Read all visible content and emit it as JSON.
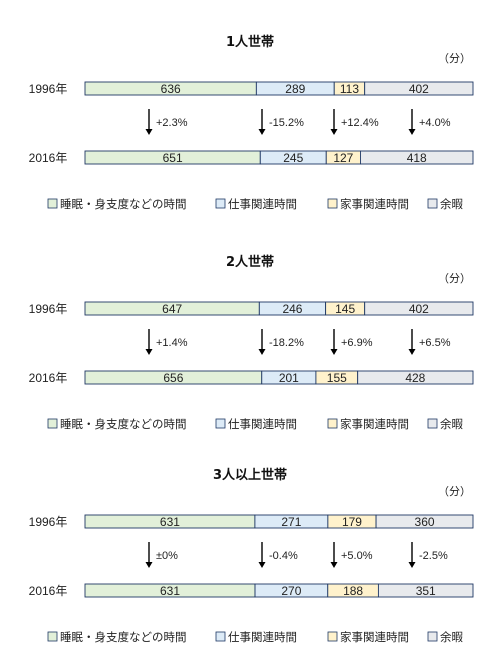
{
  "colors": {
    "sleep": "#E2F0D9",
    "work": "#DDEBF7",
    "house": "#FFF2CC",
    "leisure": "#E8EAED",
    "border": "#1F3864"
  },
  "chart_data": [
    {
      "type": "bar",
      "stacked": true,
      "orientation": "horizontal",
      "title": "1人世帯",
      "unit": "（分）",
      "categories": [
        "1996年",
        "2016年"
      ],
      "series": [
        {
          "name": "睡眠・身支度などの時間",
          "values": [
            636,
            651
          ]
        },
        {
          "name": "仕事関連時間",
          "values": [
            289,
            245
          ]
        },
        {
          "name": "家事関連時間",
          "values": [
            113,
            127
          ]
        },
        {
          "name": "余暇",
          "values": [
            402,
            418
          ]
        }
      ],
      "changes": [
        "+2.3%",
        "-15.2%",
        "+12.4%",
        "+4.0%"
      ],
      "legend": [
        "睡眠・身支度などの時間",
        "仕事関連時間",
        "家事関連時間",
        "余暇"
      ]
    },
    {
      "type": "bar",
      "stacked": true,
      "orientation": "horizontal",
      "title": "2人世帯",
      "unit": "（分）",
      "categories": [
        "1996年",
        "2016年"
      ],
      "series": [
        {
          "name": "睡眠・身支度などの時間",
          "values": [
            647,
            656
          ]
        },
        {
          "name": "仕事関連時間",
          "values": [
            246,
            201
          ]
        },
        {
          "name": "家事関連時間",
          "values": [
            145,
            155
          ]
        },
        {
          "name": "余暇",
          "values": [
            402,
            428
          ]
        }
      ],
      "changes": [
        "+1.4%",
        "-18.2%",
        "+6.9%",
        "+6.5%"
      ],
      "legend": [
        "睡眠・身支度などの時間",
        "仕事関連時間",
        "家事関連時間",
        "余暇"
      ]
    },
    {
      "type": "bar",
      "stacked": true,
      "orientation": "horizontal",
      "title": "3人以上世帯",
      "unit": "（分）",
      "categories": [
        "1996年",
        "2016年"
      ],
      "series": [
        {
          "name": "睡眠・身支度などの時間",
          "values": [
            631,
            631
          ]
        },
        {
          "name": "仕事関連時間",
          "values": [
            271,
            270
          ]
        },
        {
          "name": "家事関連時間",
          "values": [
            179,
            188
          ]
        },
        {
          "name": "余暇",
          "values": [
            360,
            351
          ]
        }
      ],
      "changes": [
        "±0%",
        "-0.4%",
        "+5.0%",
        "-2.5%"
      ],
      "legend": [
        "睡眠・身支度などの時間",
        "仕事関連時間",
        "家事関連時間",
        "余暇"
      ]
    }
  ]
}
